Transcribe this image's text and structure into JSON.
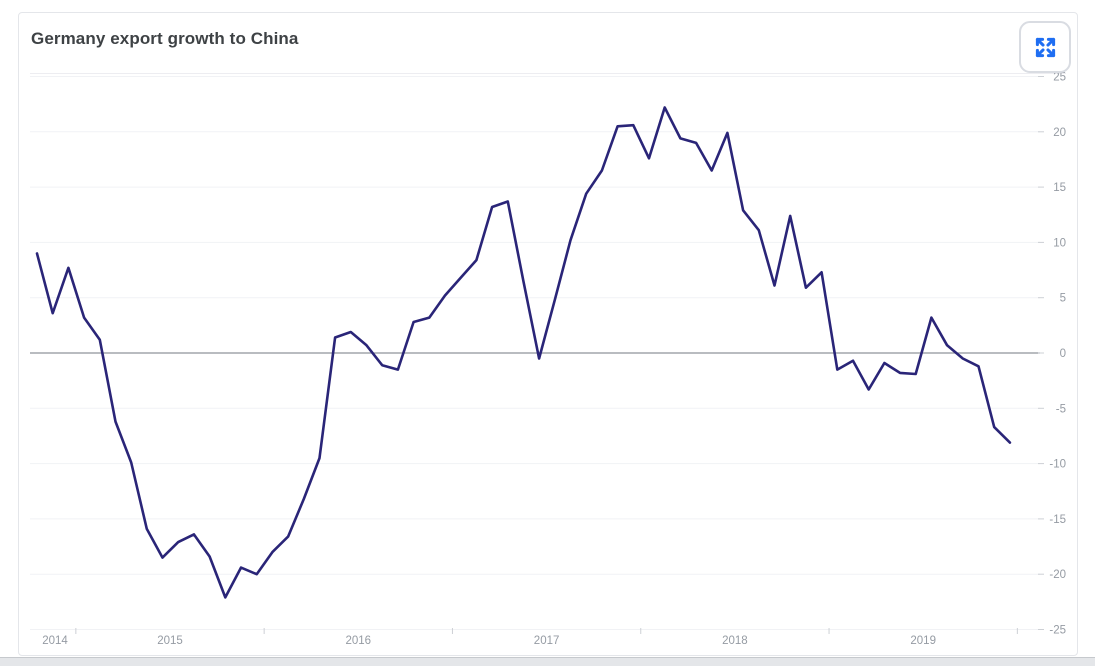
{
  "card": {
    "title": "Germany export growth to China"
  },
  "icons": {
    "expand": "four-arrows-expand-fullscreen"
  },
  "colors": {
    "series_line": "#2a2578",
    "zero_line": "#8f949b",
    "grid_line": "#f1f2f5",
    "axis_label": "#959ba3",
    "title_text": "#3e4245",
    "accent_blue": "#1f6ef2",
    "card_border": "#e4e6ea",
    "tick_mark": "#cdd0d5"
  },
  "chart_data": {
    "type": "line",
    "title": "Germany export growth to China",
    "xlabel": "",
    "ylabel": "",
    "x_unit": "month",
    "x_tick_labels": [
      "2014",
      "2015",
      "2016",
      "2017",
      "2018",
      "2019"
    ],
    "y_ticks": [
      25,
      20,
      15,
      10,
      5,
      0,
      -5,
      -10,
      -15,
      -20,
      -25
    ],
    "ylim": [
      -25,
      25
    ],
    "grid": "horizontal",
    "legend": "none",
    "zero_baseline": true,
    "series": [
      {
        "name": "Germany export growth to China",
        "dates": [
          "2014-05",
          "2014-06",
          "2014-07",
          "2014-08",
          "2014-09",
          "2014-10",
          "2014-11",
          "2014-12",
          "2015-01",
          "2015-02",
          "2015-03",
          "2015-04",
          "2015-05",
          "2015-06",
          "2015-07",
          "2015-08",
          "2015-09",
          "2015-10",
          "2015-11",
          "2015-12",
          "2016-01",
          "2016-02",
          "2016-03",
          "2016-04",
          "2016-05",
          "2016-06",
          "2016-07",
          "2016-08",
          "2016-09",
          "2016-10",
          "2016-11",
          "2016-12",
          "2017-01",
          "2017-02",
          "2017-03",
          "2017-04",
          "2017-05",
          "2017-06",
          "2017-07",
          "2017-08",
          "2017-09",
          "2017-10",
          "2017-11",
          "2017-12",
          "2018-01",
          "2018-02",
          "2018-03",
          "2018-04",
          "2018-05",
          "2018-06",
          "2018-07",
          "2018-08",
          "2018-09",
          "2018-10",
          "2018-11",
          "2018-12",
          "2019-01",
          "2019-02",
          "2019-03",
          "2019-04",
          "2019-05",
          "2019-06",
          "2019-07"
        ],
        "values": [
          9.0,
          3.6,
          7.7,
          3.2,
          1.2,
          -6.2,
          -9.9,
          -15.9,
          -18.5,
          -17.1,
          -16.4,
          -18.4,
          -22.1,
          -19.4,
          -20.0,
          -18.0,
          -16.6,
          -13.2,
          -9.5,
          1.4,
          1.9,
          0.7,
          -1.1,
          -1.5,
          2.8,
          3.2,
          5.2,
          6.8,
          8.4,
          13.2,
          13.7,
          6.5,
          -0.5,
          4.8,
          10.2,
          14.4,
          16.5,
          20.5,
          20.6,
          17.6,
          22.2,
          19.4,
          19.0,
          16.5,
          19.9,
          12.9,
          11.1,
          6.1,
          12.4,
          5.9,
          7.3,
          -1.5,
          -0.7,
          -3.3,
          -0.9,
          -1.8,
          -1.9,
          3.2,
          0.7,
          -0.5,
          -1.2,
          -6.7,
          -8.1
        ]
      }
    ]
  }
}
